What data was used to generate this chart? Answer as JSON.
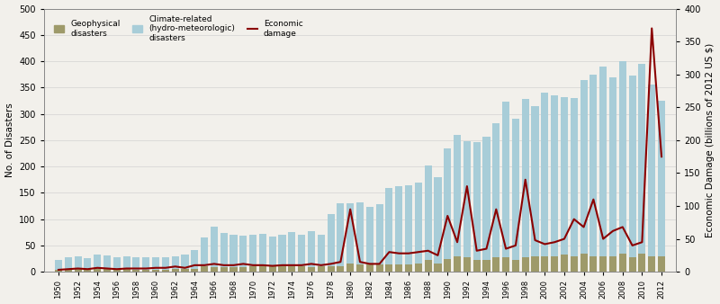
{
  "years": [
    1950,
    1951,
    1952,
    1953,
    1954,
    1955,
    1956,
    1957,
    1958,
    1959,
    1960,
    1961,
    1962,
    1963,
    1964,
    1965,
    1966,
    1967,
    1968,
    1969,
    1970,
    1971,
    1972,
    1973,
    1974,
    1975,
    1976,
    1977,
    1978,
    1979,
    1980,
    1981,
    1982,
    1983,
    1984,
    1985,
    1986,
    1987,
    1988,
    1989,
    1990,
    1991,
    1992,
    1993,
    1994,
    1995,
    1996,
    1997,
    1998,
    1999,
    2000,
    2001,
    2002,
    2003,
    2004,
    2005,
    2006,
    2007,
    2008,
    2009,
    2010,
    2011,
    2012
  ],
  "geophysical": [
    3,
    5,
    5,
    4,
    5,
    5,
    3,
    5,
    4,
    4,
    4,
    4,
    6,
    5,
    6,
    10,
    8,
    8,
    8,
    8,
    10,
    12,
    12,
    10,
    10,
    10,
    9,
    10,
    10,
    10,
    15,
    14,
    14,
    14,
    14,
    14,
    14,
    15,
    22,
    15,
    25,
    30,
    28,
    22,
    22,
    28,
    28,
    22,
    28,
    30,
    30,
    30,
    32,
    30,
    35,
    30,
    30,
    30,
    35,
    28,
    35,
    30,
    30
  ],
  "climate": [
    20,
    22,
    25,
    22,
    28,
    26,
    24,
    24,
    24,
    24,
    24,
    24,
    24,
    28,
    35,
    55,
    78,
    65,
    63,
    60,
    60,
    60,
    55,
    60,
    65,
    60,
    68,
    60,
    100,
    120,
    115,
    118,
    110,
    115,
    145,
    148,
    150,
    155,
    180,
    165,
    210,
    230,
    220,
    225,
    235,
    255,
    295,
    268,
    300,
    285,
    310,
    305,
    300,
    300,
    330,
    345,
    360,
    340,
    365,
    345,
    360,
    325,
    295
  ],
  "economic_damage": [
    3,
    4,
    5,
    4,
    6,
    5,
    4,
    5,
    5,
    5,
    6,
    6,
    8,
    6,
    10,
    10,
    12,
    10,
    10,
    12,
    10,
    10,
    9,
    10,
    10,
    10,
    12,
    10,
    12,
    15,
    95,
    15,
    12,
    12,
    30,
    28,
    28,
    30,
    32,
    25,
    85,
    45,
    130,
    32,
    35,
    95,
    35,
    40,
    140,
    48,
    42,
    45,
    50,
    80,
    68,
    110,
    50,
    62,
    68,
    40,
    45,
    370,
    175
  ],
  "geo_color": "#9e9a6a",
  "climate_color": "#a8cdd8",
  "econ_color": "#8b0000",
  "ylabel_left": "No. of Disasters",
  "ylabel_right": "Economic Damage (billions of 2012 US $)",
  "ylim_left": [
    0,
    500
  ],
  "ylim_right": [
    0,
    400
  ],
  "yticks_left": [
    0,
    50,
    100,
    150,
    200,
    250,
    300,
    350,
    400,
    450,
    500
  ],
  "yticks_right": [
    0,
    50,
    100,
    150,
    200,
    250,
    300,
    350,
    400
  ],
  "legend_geo": "Geophysical\ndisasters",
  "legend_climate": "Climate-related\n(hydro-meteorologic)\ndisasters",
  "legend_econ": "Economic\ndamage",
  "bg_color": "#f2f0eb",
  "figwidth": 8.0,
  "figheight": 3.38,
  "dpi": 100
}
